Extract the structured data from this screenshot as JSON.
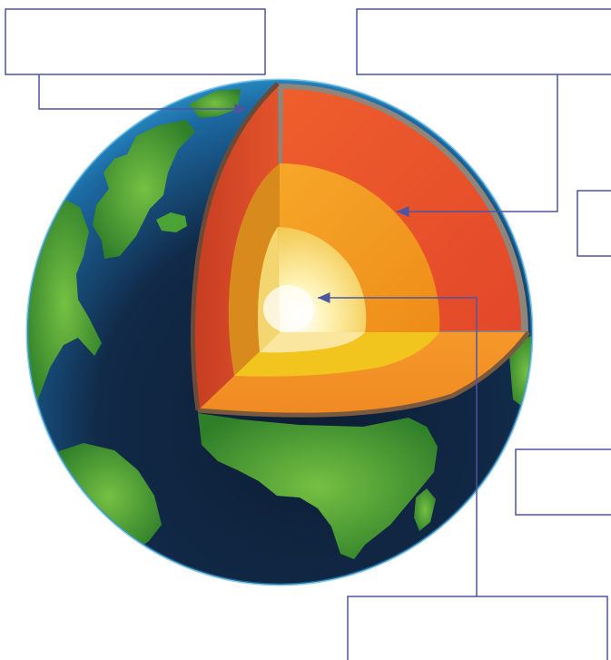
{
  "diagram": {
    "labels": [
      {
        "id": "crust",
        "text": ""
      },
      {
        "id": "mantle",
        "text": ""
      },
      {
        "id": "right-upper",
        "text": ""
      },
      {
        "id": "right-lower",
        "text": ""
      },
      {
        "id": "inner-core",
        "text": ""
      }
    ]
  },
  "colors": {
    "frame": "#4f54a1",
    "ocean_light": "#2aa0d8",
    "ocean_dark": "#0a1c33",
    "land": "#4a9a33",
    "crust": "#8a7d72",
    "mantle": "#e8542b",
    "outer_core": "#f29a20",
    "inner_core": "#fff4b0"
  }
}
